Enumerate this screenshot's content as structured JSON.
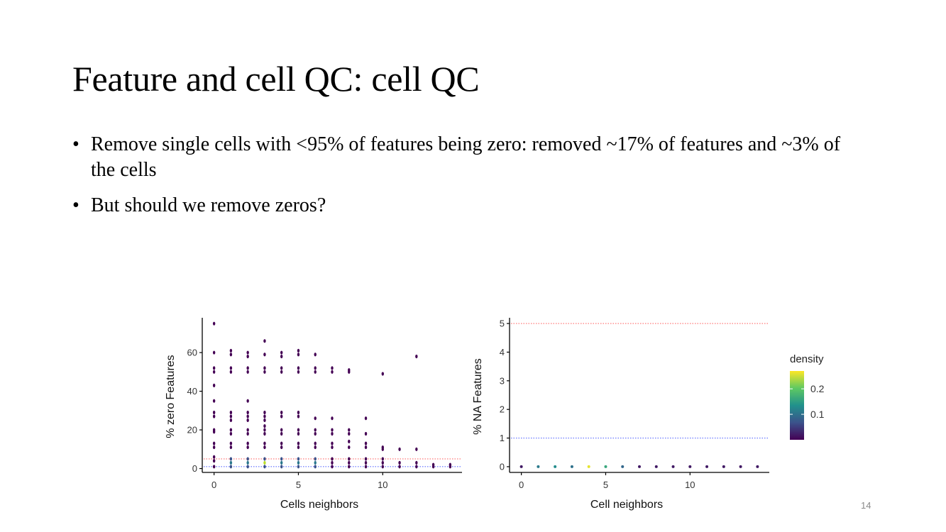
{
  "slide": {
    "title": "Feature and cell QC: cell QC",
    "bullets": [
      "Remove single cells with <95% of features being zero: removed ~17% of features and ~3% of the cells",
      "But should we remove zeros?"
    ],
    "slide_number": "14"
  },
  "chart_data": [
    {
      "type": "scatter",
      "title": "",
      "xlabel": "Cells neighbors",
      "ylabel": "% zero Features",
      "xlim": [
        -0.7,
        14.7
      ],
      "ylim": [
        -2,
        78
      ],
      "xticks": [
        0,
        5,
        10
      ],
      "yticks": [
        0,
        20,
        40,
        60
      ],
      "grid": false,
      "hlines": [
        {
          "y": 5,
          "color": "#ff6b6b",
          "style": "dotted"
        },
        {
          "y": 1,
          "color": "#5b6bff",
          "style": "dotted"
        }
      ],
      "color_by": "density",
      "points": [
        {
          "x": 0,
          "y": 75
        },
        {
          "x": 0,
          "y": 60
        },
        {
          "x": 0,
          "y": 52
        },
        {
          "x": 0,
          "y": 50
        },
        {
          "x": 0,
          "y": 43
        },
        {
          "x": 0,
          "y": 35
        },
        {
          "x": 0,
          "y": 29
        },
        {
          "x": 0,
          "y": 27
        },
        {
          "x": 0,
          "y": 20
        },
        {
          "x": 0,
          "y": 19
        },
        {
          "x": 0,
          "y": 13
        },
        {
          "x": 0,
          "y": 11
        },
        {
          "x": 0,
          "y": 6
        },
        {
          "x": 0,
          "y": 4
        },
        {
          "x": 0,
          "y": 1
        },
        {
          "x": 1,
          "y": 61
        },
        {
          "x": 1,
          "y": 59
        },
        {
          "x": 1,
          "y": 52
        },
        {
          "x": 1,
          "y": 50
        },
        {
          "x": 1,
          "y": 29
        },
        {
          "x": 1,
          "y": 27
        },
        {
          "x": 1,
          "y": 25
        },
        {
          "x": 1,
          "y": 20
        },
        {
          "x": 1,
          "y": 18
        },
        {
          "x": 1,
          "y": 13
        },
        {
          "x": 1,
          "y": 11
        },
        {
          "x": 1,
          "y": 5
        },
        {
          "x": 1,
          "y": 3
        },
        {
          "x": 1,
          "y": 1
        },
        {
          "x": 2,
          "y": 60
        },
        {
          "x": 2,
          "y": 58
        },
        {
          "x": 2,
          "y": 52
        },
        {
          "x": 2,
          "y": 50
        },
        {
          "x": 2,
          "y": 35
        },
        {
          "x": 2,
          "y": 29
        },
        {
          "x": 2,
          "y": 27
        },
        {
          "x": 2,
          "y": 25
        },
        {
          "x": 2,
          "y": 20
        },
        {
          "x": 2,
          "y": 18
        },
        {
          "x": 2,
          "y": 13
        },
        {
          "x": 2,
          "y": 11
        },
        {
          "x": 2,
          "y": 5
        },
        {
          "x": 2,
          "y": 3
        },
        {
          "x": 2,
          "y": 1
        },
        {
          "x": 3,
          "y": 66
        },
        {
          "x": 3,
          "y": 59
        },
        {
          "x": 3,
          "y": 52
        },
        {
          "x": 3,
          "y": 50
        },
        {
          "x": 3,
          "y": 29
        },
        {
          "x": 3,
          "y": 27
        },
        {
          "x": 3,
          "y": 25
        },
        {
          "x": 3,
          "y": 22
        },
        {
          "x": 3,
          "y": 20
        },
        {
          "x": 3,
          "y": 18
        },
        {
          "x": 3,
          "y": 13
        },
        {
          "x": 3,
          "y": 11
        },
        {
          "x": 3,
          "y": 5
        },
        {
          "x": 3,
          "y": 3
        },
        {
          "x": 3,
          "y": 1
        },
        {
          "x": 4,
          "y": 60
        },
        {
          "x": 4,
          "y": 58
        },
        {
          "x": 4,
          "y": 52
        },
        {
          "x": 4,
          "y": 50
        },
        {
          "x": 4,
          "y": 29
        },
        {
          "x": 4,
          "y": 27
        },
        {
          "x": 4,
          "y": 20
        },
        {
          "x": 4,
          "y": 18
        },
        {
          "x": 4,
          "y": 13
        },
        {
          "x": 4,
          "y": 11
        },
        {
          "x": 4,
          "y": 5
        },
        {
          "x": 4,
          "y": 3
        },
        {
          "x": 4,
          "y": 1
        },
        {
          "x": 5,
          "y": 61
        },
        {
          "x": 5,
          "y": 59
        },
        {
          "x": 5,
          "y": 52
        },
        {
          "x": 5,
          "y": 50
        },
        {
          "x": 5,
          "y": 29
        },
        {
          "x": 5,
          "y": 27
        },
        {
          "x": 5,
          "y": 20
        },
        {
          "x": 5,
          "y": 18
        },
        {
          "x": 5,
          "y": 13
        },
        {
          "x": 5,
          "y": 11
        },
        {
          "x": 5,
          "y": 5
        },
        {
          "x": 5,
          "y": 3
        },
        {
          "x": 5,
          "y": 1
        },
        {
          "x": 6,
          "y": 59
        },
        {
          "x": 6,
          "y": 52
        },
        {
          "x": 6,
          "y": 50
        },
        {
          "x": 6,
          "y": 26
        },
        {
          "x": 6,
          "y": 20
        },
        {
          "x": 6,
          "y": 18
        },
        {
          "x": 6,
          "y": 13
        },
        {
          "x": 6,
          "y": 11
        },
        {
          "x": 6,
          "y": 5
        },
        {
          "x": 6,
          "y": 3
        },
        {
          "x": 6,
          "y": 1
        },
        {
          "x": 7,
          "y": 52
        },
        {
          "x": 7,
          "y": 50
        },
        {
          "x": 7,
          "y": 26
        },
        {
          "x": 7,
          "y": 20
        },
        {
          "x": 7,
          "y": 18
        },
        {
          "x": 7,
          "y": 13
        },
        {
          "x": 7,
          "y": 11
        },
        {
          "x": 7,
          "y": 5
        },
        {
          "x": 7,
          "y": 3
        },
        {
          "x": 7,
          "y": 1
        },
        {
          "x": 8,
          "y": 51
        },
        {
          "x": 8,
          "y": 50
        },
        {
          "x": 8,
          "y": 20
        },
        {
          "x": 8,
          "y": 18
        },
        {
          "x": 8,
          "y": 14
        },
        {
          "x": 8,
          "y": 11
        },
        {
          "x": 8,
          "y": 5
        },
        {
          "x": 8,
          "y": 3
        },
        {
          "x": 8,
          "y": 1
        },
        {
          "x": 9,
          "y": 26
        },
        {
          "x": 9,
          "y": 18
        },
        {
          "x": 9,
          "y": 13
        },
        {
          "x": 9,
          "y": 11
        },
        {
          "x": 9,
          "y": 5
        },
        {
          "x": 9,
          "y": 3
        },
        {
          "x": 9,
          "y": 1
        },
        {
          "x": 10,
          "y": 49
        },
        {
          "x": 10,
          "y": 11
        },
        {
          "x": 10,
          "y": 10
        },
        {
          "x": 10,
          "y": 5
        },
        {
          "x": 10,
          "y": 3
        },
        {
          "x": 10,
          "y": 1
        },
        {
          "x": 11,
          "y": 10
        },
        {
          "x": 11,
          "y": 3
        },
        {
          "x": 11,
          "y": 1
        },
        {
          "x": 12,
          "y": 58
        },
        {
          "x": 12,
          "y": 10
        },
        {
          "x": 12,
          "y": 3
        },
        {
          "x": 12,
          "y": 1
        },
        {
          "x": 13,
          "y": 2
        },
        {
          "x": 13,
          "y": 1
        },
        {
          "x": 14,
          "y": 2
        },
        {
          "x": 14,
          "y": 1
        }
      ]
    },
    {
      "type": "scatter",
      "title": "",
      "xlabel": "Cell neighbors",
      "ylabel": "% NA Features",
      "xlim": [
        -0.7,
        14.7
      ],
      "ylim": [
        -0.2,
        5.2
      ],
      "xticks": [
        0,
        5,
        10
      ],
      "yticks": [
        0,
        1,
        2,
        3,
        4,
        5
      ],
      "grid": false,
      "hlines": [
        {
          "y": 5,
          "color": "#ff6b6b",
          "style": "dotted"
        },
        {
          "y": 1,
          "color": "#5b6bff",
          "style": "dotted"
        }
      ],
      "color_by": "density",
      "points": [
        {
          "x": 0,
          "y": 0,
          "density": 0.02
        },
        {
          "x": 1,
          "y": 0,
          "density": 0.11
        },
        {
          "x": 2,
          "y": 0,
          "density": 0.13
        },
        {
          "x": 3,
          "y": 0,
          "density": 0.1
        },
        {
          "x": 4,
          "y": 0,
          "density": 0.26
        },
        {
          "x": 5,
          "y": 0,
          "density": 0.16
        },
        {
          "x": 6,
          "y": 0,
          "density": 0.09
        },
        {
          "x": 7,
          "y": 0,
          "density": 0.02
        },
        {
          "x": 8,
          "y": 0,
          "density": 0.02
        },
        {
          "x": 9,
          "y": 0,
          "density": 0.02
        },
        {
          "x": 10,
          "y": 0,
          "density": 0.02
        },
        {
          "x": 11,
          "y": 0,
          "density": 0.02
        },
        {
          "x": 12,
          "y": 0,
          "density": 0.02
        },
        {
          "x": 13,
          "y": 0,
          "density": 0.02
        },
        {
          "x": 14,
          "y": 0,
          "density": 0.02
        }
      ],
      "legend": {
        "title": "density",
        "ticks": [
          {
            "value": 0.2,
            "label": "0.2"
          },
          {
            "value": 0.1,
            "label": "0.1"
          }
        ],
        "range": [
          0.0,
          0.27
        ],
        "colors": [
          "#440154",
          "#3b528b",
          "#21918c",
          "#5ec962",
          "#fde725"
        ]
      }
    }
  ]
}
